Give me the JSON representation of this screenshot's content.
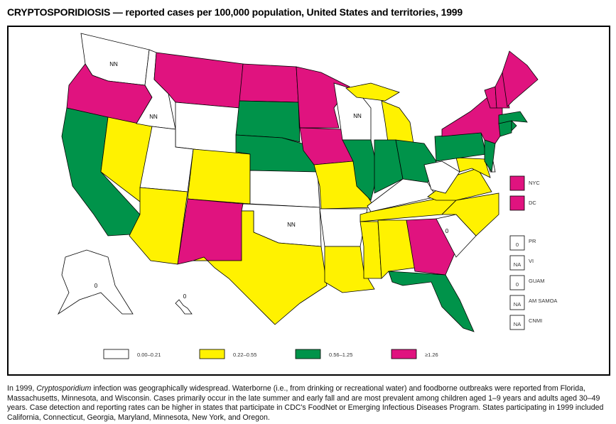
{
  "title": "CRYPTOSPORIDIOSIS — reported cases per 100,000 population, United States and territories, 1999",
  "colors": {
    "low": "#FFFFFF",
    "mid": "#FFF200",
    "high": "#00934A",
    "top": "#E0137F"
  },
  "legend": [
    {
      "category": "low",
      "label": "0.00–0.21"
    },
    {
      "category": "mid",
      "label": "0.22–0.55"
    },
    {
      "category": "high",
      "label": "0.56–1.25"
    },
    {
      "category": "top",
      "label": "≥1.26"
    }
  ],
  "cities": [
    {
      "name": "NYC",
      "category": "top"
    },
    {
      "name": "DC",
      "category": "top"
    }
  ],
  "territories": [
    {
      "name": "PR",
      "value": "0"
    },
    {
      "name": "VI",
      "value": "NA"
    },
    {
      "name": "GUAM",
      "value": "0"
    },
    {
      "name": "AM SAMOA",
      "value": "NA"
    },
    {
      "name": "CNMI",
      "value": "NA"
    }
  ],
  "states": {
    "WA": {
      "category": "low",
      "label": "NN"
    },
    "OR": {
      "category": "top"
    },
    "CA": {
      "category": "high"
    },
    "NV": {
      "category": "mid"
    },
    "ID": {
      "category": "low",
      "label": "NN"
    },
    "MT": {
      "category": "top"
    },
    "WY": {
      "category": "low"
    },
    "UT": {
      "category": "low"
    },
    "AZ": {
      "category": "mid"
    },
    "CO": {
      "category": "mid"
    },
    "NM": {
      "category": "top"
    },
    "ND": {
      "category": "top"
    },
    "SD": {
      "category": "high"
    },
    "NE": {
      "category": "high"
    },
    "KS": {
      "category": "low"
    },
    "OK": {
      "category": "low",
      "label": "NN"
    },
    "TX": {
      "category": "mid"
    },
    "MN": {
      "category": "top"
    },
    "IA": {
      "category": "top"
    },
    "MO": {
      "category": "mid"
    },
    "AR": {
      "category": "low"
    },
    "LA": {
      "category": "mid"
    },
    "WI": {
      "category": "low",
      "label": "NN"
    },
    "IL": {
      "category": "high"
    },
    "MI": {
      "category": "mid"
    },
    "MIU": {
      "category": "mid"
    },
    "IN": {
      "category": "high"
    },
    "OH": {
      "category": "high"
    },
    "KY": {
      "category": "low"
    },
    "TN": {
      "category": "mid"
    },
    "MS": {
      "category": "mid"
    },
    "AL": {
      "category": "mid"
    },
    "GA": {
      "category": "top"
    },
    "FL": {
      "category": "high"
    },
    "SC": {
      "category": "low",
      "label": "0"
    },
    "NC": {
      "category": "mid"
    },
    "VA": {
      "category": "mid"
    },
    "WV": {
      "category": "low"
    },
    "MD": {
      "category": "mid"
    },
    "DE": {
      "category": "low"
    },
    "PA": {
      "category": "high"
    },
    "NJ": {
      "category": "high"
    },
    "NY": {
      "category": "top"
    },
    "CT": {
      "category": "high"
    },
    "RI": {
      "category": "high"
    },
    "MA": {
      "category": "high"
    },
    "VT": {
      "category": "top"
    },
    "NH": {
      "category": "top"
    },
    "ME": {
      "category": "top"
    },
    "AK": {
      "category": "low",
      "label": "0"
    },
    "HI": {
      "category": "low",
      "label": "0"
    }
  },
  "caption": {
    "pre": "In 1999, ",
    "italic": "Cryptosporidium",
    "post": " infection was geographically widespread. Waterborne (i.e., from drinking or recreational water) and foodborne outbreaks were reported from Florida, Massachusetts, Minnesota, and Wisconsin. Cases primarily occur in the late summer and early fall and are most prevalent among children aged 1–9 years and adults aged 30–49 years. Case detection and reporting rates can be higher in states that participate in CDC's FoodNet or Emerging Infectious Diseases Program. States participating in 1999 included California, Connecticut, Georgia, Maryland, Minnesota, New York, and Oregon."
  }
}
